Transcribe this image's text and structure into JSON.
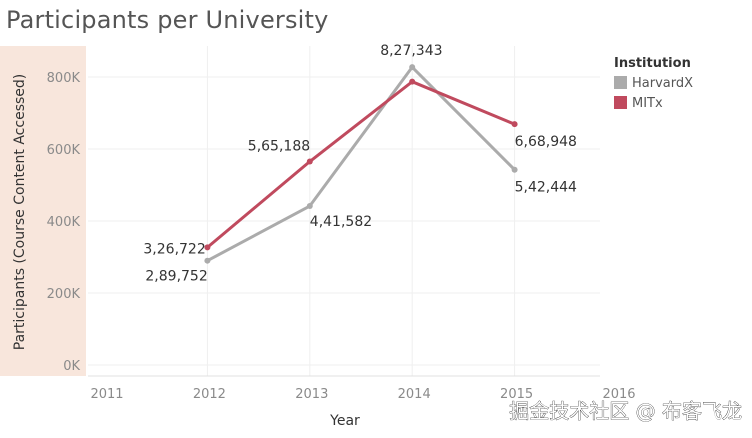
{
  "title": "Participants per University",
  "chart_data": {
    "type": "line",
    "title": "Participants per University",
    "xlabel": "Year",
    "ylabel": "Participants (Course Content Accessed)",
    "x_ticks": [
      "2011",
      "2012",
      "2013",
      "2014",
      "2015",
      "2016"
    ],
    "xlim": [
      2011,
      2016
    ],
    "y_ticks": [
      "0K",
      "200K",
      "400K",
      "600K",
      "800K"
    ],
    "ylim": [
      0,
      850000
    ],
    "grid": true,
    "legend": {
      "title": "Institution",
      "position": "top-right"
    },
    "series": [
      {
        "name": "HarvardX",
        "color": "#ababab",
        "x": [
          2012,
          2013,
          2014,
          2015
        ],
        "values": [
          289752,
          441582,
          827343,
          542444
        ],
        "labels": [
          "2,89,752",
          "4,41,582",
          "8,27,343",
          "5,42,444"
        ]
      },
      {
        "name": "MITx",
        "color": "#c04a5e",
        "x": [
          2012,
          2013,
          2014,
          2015
        ],
        "values": [
          326722,
          565188,
          787000,
          668948
        ],
        "labels": [
          "3,26,722",
          "5,65,188",
          "",
          "6,68,948"
        ]
      }
    ],
    "axis_band_color": "#f8e6dc"
  },
  "watermark": "掘金技术社区 @ 布客飞龙"
}
